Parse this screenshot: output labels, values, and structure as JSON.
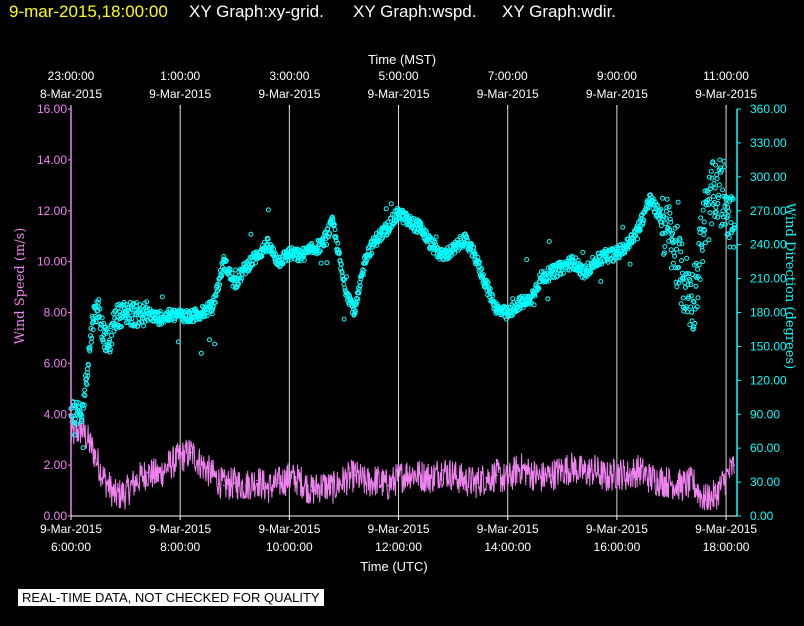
{
  "header": {
    "date": "9-mar-2015,18:00:00",
    "graphs": [
      "XY Graph:xy-grid.",
      "XY Graph:wspd.",
      "XY Graph:wdir."
    ]
  },
  "notice": "REAL-TIME DATA, NOT CHECKED FOR QUALITY",
  "colors": {
    "background": "#000000",
    "speed": "#ee82ee",
    "direction": "#00ffff",
    "grid": "#ffffff",
    "date": "#ffff00"
  },
  "chart_data": {
    "type": "scatter",
    "top_axis": {
      "label": "Time (MST)",
      "ticks": [
        {
          "hour": 0,
          "time": "23:00:00",
          "date": "8-Mar-2015"
        },
        {
          "hour": 2,
          "time": "1:00:00",
          "date": "9-Mar-2015"
        },
        {
          "hour": 4,
          "time": "3:00:00",
          "date": "9-Mar-2015"
        },
        {
          "hour": 6,
          "time": "5:00:00",
          "date": "9-Mar-2015"
        },
        {
          "hour": 8,
          "time": "7:00:00",
          "date": "9-Mar-2015"
        },
        {
          "hour": 10,
          "time": "9:00:00",
          "date": "9-Mar-2015"
        },
        {
          "hour": 12,
          "time": "11:00:00",
          "date": "9-Mar-2015"
        }
      ]
    },
    "bottom_axis": {
      "label": "Time (UTC)",
      "ticks": [
        {
          "hour": 0,
          "date": "9-Mar-2015",
          "time": "6:00:00"
        },
        {
          "hour": 2,
          "date": "9-Mar-2015",
          "time": "8:00:00"
        },
        {
          "hour": 4,
          "date": "9-Mar-2015",
          "time": "10:00:00"
        },
        {
          "hour": 6,
          "date": "9-Mar-2015",
          "time": "12:00:00"
        },
        {
          "hour": 8,
          "date": "9-Mar-2015",
          "time": "14:00:00"
        },
        {
          "hour": 10,
          "date": "9-Mar-2015",
          "time": "16:00:00"
        },
        {
          "hour": 12,
          "date": "9-Mar-2015",
          "time": "18:00:00"
        }
      ]
    },
    "x_range_hours": [
      0,
      12.2
    ],
    "left_axis": {
      "label": "Wind Speed (m/s)",
      "range": [
        0,
        16
      ],
      "ticks": [
        "0.00",
        "2.00",
        "4.00",
        "6.00",
        "8.00",
        "10.00",
        "12.00",
        "14.00",
        "16.00"
      ]
    },
    "right_axis": {
      "label": "Wind Direction (degrees)",
      "range": [
        0,
        360
      ],
      "ticks": [
        "0.00",
        "30.00",
        "60.00",
        "90.00",
        "120.00",
        "150.00",
        "180.00",
        "210.00",
        "240.00",
        "270.00",
        "300.00",
        "330.00",
        "360.00"
      ]
    },
    "grid": "vertical",
    "series": [
      {
        "name": "wspd",
        "axis": "left",
        "style": "line",
        "x": [
          0,
          0.2,
          0.4,
          0.6,
          0.8,
          1.0,
          1.2,
          1.4,
          1.6,
          1.8,
          2.0,
          2.2,
          2.4,
          2.6,
          2.8,
          3.0,
          3.2,
          3.4,
          3.6,
          3.8,
          4.0,
          4.2,
          4.4,
          4.6,
          4.8,
          5.0,
          5.2,
          5.4,
          5.6,
          5.8,
          6.0,
          6.2,
          6.4,
          6.6,
          6.8,
          7.0,
          7.2,
          7.4,
          7.6,
          7.8,
          8.0,
          8.2,
          8.4,
          8.6,
          8.8,
          9.0,
          9.2,
          9.4,
          9.6,
          9.8,
          10.0,
          10.2,
          10.4,
          10.6,
          10.8,
          11.0,
          11.2,
          11.4,
          11.6,
          11.8,
          12.0,
          12.15
        ],
        "y": [
          3.2,
          3.4,
          2.6,
          1.5,
          0.8,
          0.9,
          1.4,
          1.7,
          1.6,
          2.0,
          2.3,
          2.5,
          2.0,
          1.6,
          1.2,
          1.3,
          1.2,
          1.4,
          1.1,
          1.3,
          1.5,
          1.4,
          1.0,
          1.2,
          1.1,
          1.4,
          1.6,
          1.3,
          1.4,
          1.2,
          1.5,
          1.7,
          1.6,
          1.5,
          1.8,
          1.6,
          1.4,
          1.3,
          1.5,
          1.6,
          1.4,
          1.9,
          1.7,
          1.5,
          1.6,
          1.8,
          1.9,
          1.7,
          1.8,
          1.5,
          1.7,
          1.6,
          1.8,
          1.5,
          1.4,
          1.3,
          1.2,
          1.3,
          0.6,
          0.8,
          1.5,
          2.0
        ]
      },
      {
        "name": "wdir",
        "axis": "right",
        "style": "markers",
        "x": [
          0,
          0.1,
          0.2,
          0.3,
          0.4,
          0.5,
          0.6,
          0.7,
          0.8,
          0.9,
          1.0,
          1.2,
          1.4,
          1.6,
          1.8,
          2.0,
          2.2,
          2.4,
          2.6,
          2.8,
          3.0,
          3.2,
          3.4,
          3.6,
          3.8,
          4.0,
          4.2,
          4.4,
          4.6,
          4.8,
          5.0,
          5.2,
          5.4,
          5.6,
          5.8,
          6.0,
          6.2,
          6.4,
          6.6,
          6.8,
          7.0,
          7.2,
          7.4,
          7.6,
          7.8,
          8.0,
          8.2,
          8.4,
          8.6,
          8.8,
          9.0,
          9.2,
          9.4,
          9.6,
          9.8,
          10.0,
          10.2,
          10.4,
          10.6,
          10.8,
          11.0,
          11.2,
          11.4,
          11.6,
          11.8,
          12.0,
          12.15
        ],
        "y": [
          95,
          90,
          88,
          130,
          175,
          185,
          160,
          150,
          175,
          178,
          180,
          178,
          179,
          175,
          177,
          178,
          176,
          180,
          185,
          225,
          205,
          220,
          230,
          240,
          225,
          232,
          230,
          235,
          240,
          260,
          205,
          180,
          230,
          245,
          255,
          268,
          260,
          255,
          240,
          230,
          235,
          245,
          230,
          205,
          183,
          178,
          188,
          190,
          210,
          215,
          220,
          225,
          215,
          225,
          230,
          232,
          240,
          255,
          280,
          265,
          245,
          210,
          190,
          260,
          290,
          280,
          255
        ]
      }
    ]
  }
}
